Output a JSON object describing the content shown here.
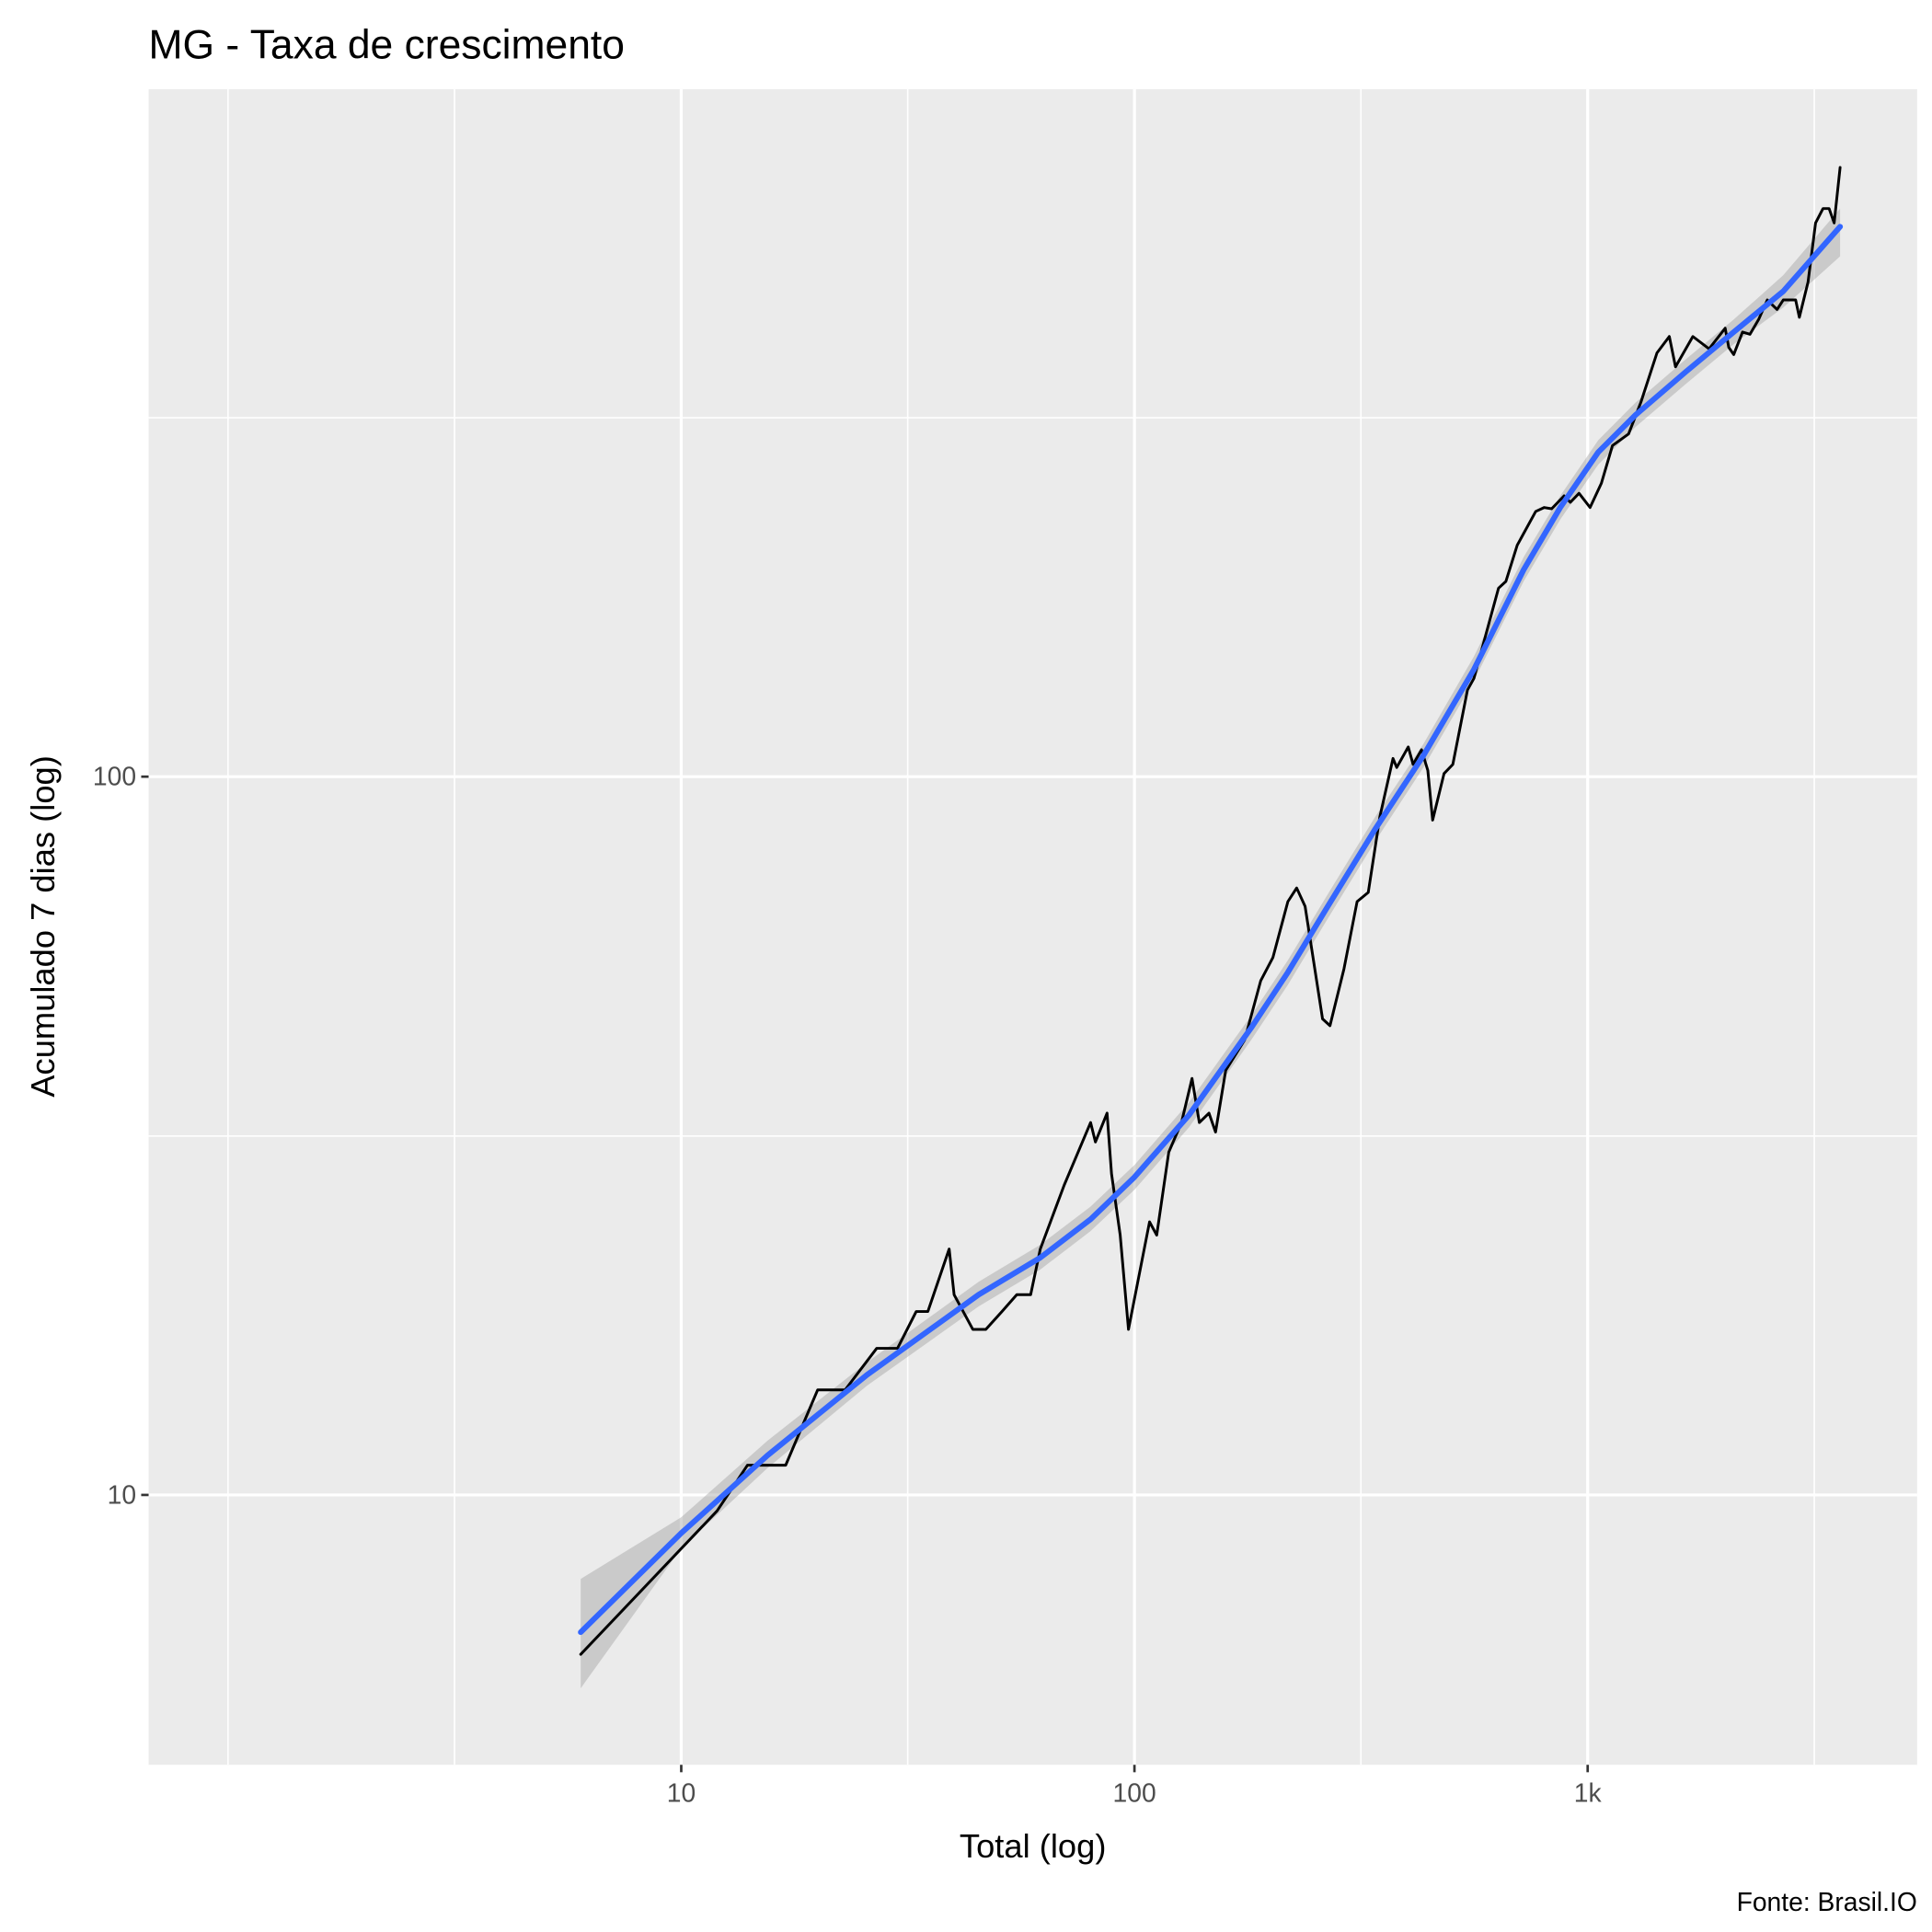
{
  "chart_data": {
    "type": "line",
    "title": "MG - Taxa de crescimento",
    "x_label": "Total (log)",
    "y_label": "Acumulado 7 dias (log)",
    "caption": "Fonte: Brasil.IO",
    "log_x": true,
    "log_y": true,
    "grid": true,
    "xlim": [
      0.668,
      5333
    ],
    "ylim": [
      4.21,
      906
    ],
    "xticks": [
      10,
      100,
      {
        "value": 1000,
        "label": "1k"
      }
    ],
    "yticks": [
      10,
      100
    ],
    "xminor": [
      1,
      3.16,
      31.6,
      316,
      3162
    ],
    "yminor": [
      31.6,
      316
    ],
    "series": [
      {
        "color": "#000000",
        "x": [
          6,
          12,
          14,
          17,
          20,
          23,
          27,
          30,
          33,
          35,
          39,
          40,
          44,
          47,
          51,
          55,
          59,
          62,
          70,
          80,
          82,
          87,
          89,
          93,
          97,
          108,
          112,
          119,
          127,
          134,
          139,
          146,
          151,
          159,
          175,
          190,
          202,
          218,
          228,
          238,
          260,
          270,
          290,
          310,
          328,
          348,
          372,
          379,
          402,
          412,
          430,
          444,
          455,
          482,
          504,
          543,
          561,
          636,
          660,
          699,
          768,
          802,
          833,
          887,
          916,
          957,
          1012,
          1072,
          1134,
          1231,
          1310,
          1422,
          1514,
          1563,
          1706,
          1853,
          2011,
          2048,
          2100,
          2196,
          2281,
          2384,
          2491,
          2618,
          2702,
          2877,
          2932,
          3064,
          3183,
          3305,
          3410,
          3498,
          3606
        ],
        "values": [
          6,
          9.5,
          11,
          11,
          14,
          14,
          16,
          16,
          18,
          18,
          22,
          19,
          17,
          17,
          18,
          19,
          19,
          22,
          27,
          33,
          31,
          34,
          28,
          23,
          17,
          24,
          23,
          30,
          33,
          38,
          33,
          34,
          32,
          39,
          43,
          52,
          56,
          67,
          70,
          66,
          46,
          45,
          54,
          67,
          69,
          88,
          106,
          103,
          110,
          104,
          109,
          102,
          87,
          101,
          104,
          132,
          137,
          183,
          187,
          210,
          234,
          237,
          236,
          246,
          241,
          248,
          237,
          256,
          289,
          300,
          332,
          389,
          410,
          372,
          410,
          394,
          421,
          396,
          387,
          416,
          413,
          433,
          461,
          447,
          461,
          461,
          436,
          488,
          590,
          618,
          618,
          590,
          705
        ]
      },
      {
        "color": "#3366ff",
        "band_color": "#999999",
        "x": [
          6,
          10,
          15.5,
          25.7,
          45.3,
          62,
          80,
          100,
          132,
          181,
          218,
          264,
          339,
          434,
          561,
          722,
          870,
          1055,
          1277,
          1645,
          2100,
          2702,
          3606
        ],
        "values": [
          6.44,
          8.85,
          11.35,
          14.7,
          19.0,
          21.4,
          24.2,
          27.7,
          33.8,
          44.7,
          53.4,
          65.2,
          84.3,
          107,
          141,
          194,
          237,
          283,
          319,
          366,
          416,
          474,
          583
        ],
        "lower": [
          5.38,
          8.43,
          10.9,
          14.2,
          18.3,
          20.6,
          23.3,
          26.6,
          32.5,
          43.0,
          51.3,
          62.7,
          81.1,
          103,
          136,
          187,
          228,
          272,
          307,
          352,
          400,
          450,
          530
        ],
        "upper": [
          7.64,
          9.31,
          11.9,
          15.3,
          19.8,
          22.3,
          25.2,
          28.8,
          35.2,
          46.5,
          55.5,
          67.8,
          87.7,
          111,
          147,
          202,
          246,
          294,
          332,
          381,
          433,
          499,
          618
        ]
      }
    ]
  }
}
